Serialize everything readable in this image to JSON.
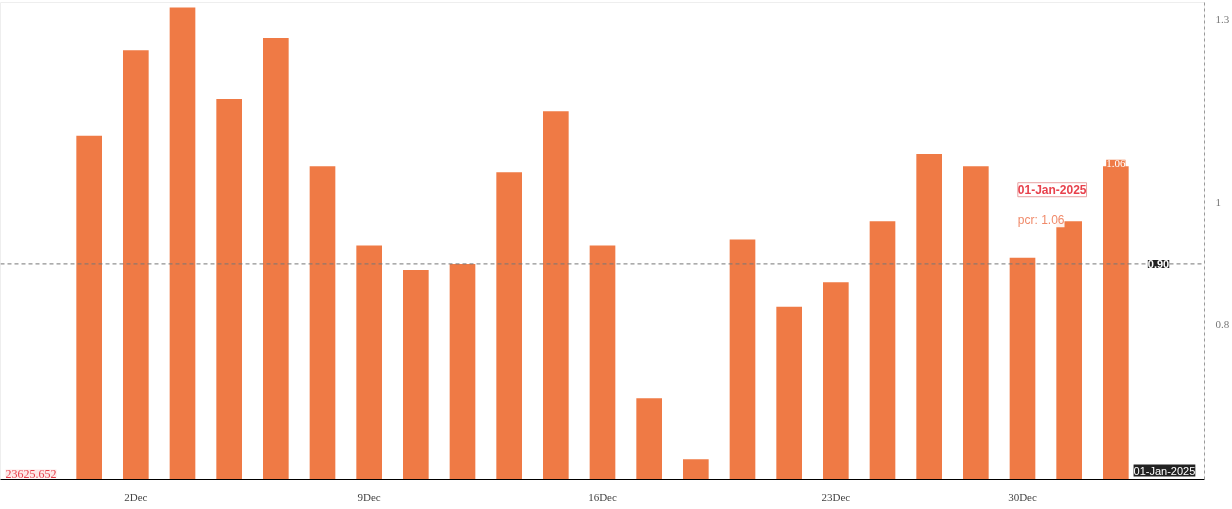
{
  "chart_data": {
    "type": "bar",
    "categories": [
      null,
      "2Dec",
      null,
      null,
      null,
      null,
      "9Dec",
      null,
      null,
      null,
      null,
      "16Dec",
      null,
      null,
      null,
      null,
      "23Dec",
      null,
      null,
      null,
      "30Dec",
      null,
      null
    ],
    "values": [
      1.11,
      1.25,
      1.32,
      1.17,
      1.27,
      1.06,
      0.93,
      0.89,
      0.9,
      1.05,
      1.15,
      0.93,
      0.68,
      0.58,
      0.94,
      0.83,
      0.87,
      0.97,
      1.08,
      1.06,
      0.91,
      0.97,
      1.06
    ],
    "color": "#ef7a45",
    "value_labels": [
      null,
      null,
      null,
      null,
      null,
      null,
      null,
      null,
      null,
      null,
      null,
      null,
      null,
      null,
      null,
      null,
      null,
      null,
      null,
      null,
      null,
      null,
      "1.06"
    ],
    "ylim": [
      0.547,
      1.328
    ],
    "yticks": [
      0.8,
      1,
      1.3
    ],
    "grid": false,
    "ref_lines": [
      {
        "axis": "y",
        "value": 0.9,
        "label": "0.90",
        "color": "#777777",
        "line_style": "dashed"
      }
    ],
    "annotations": [
      "01-Jan-2025",
      "pcr: 1.06",
      "23625.652",
      "01-Jan-2025"
    ]
  }
}
